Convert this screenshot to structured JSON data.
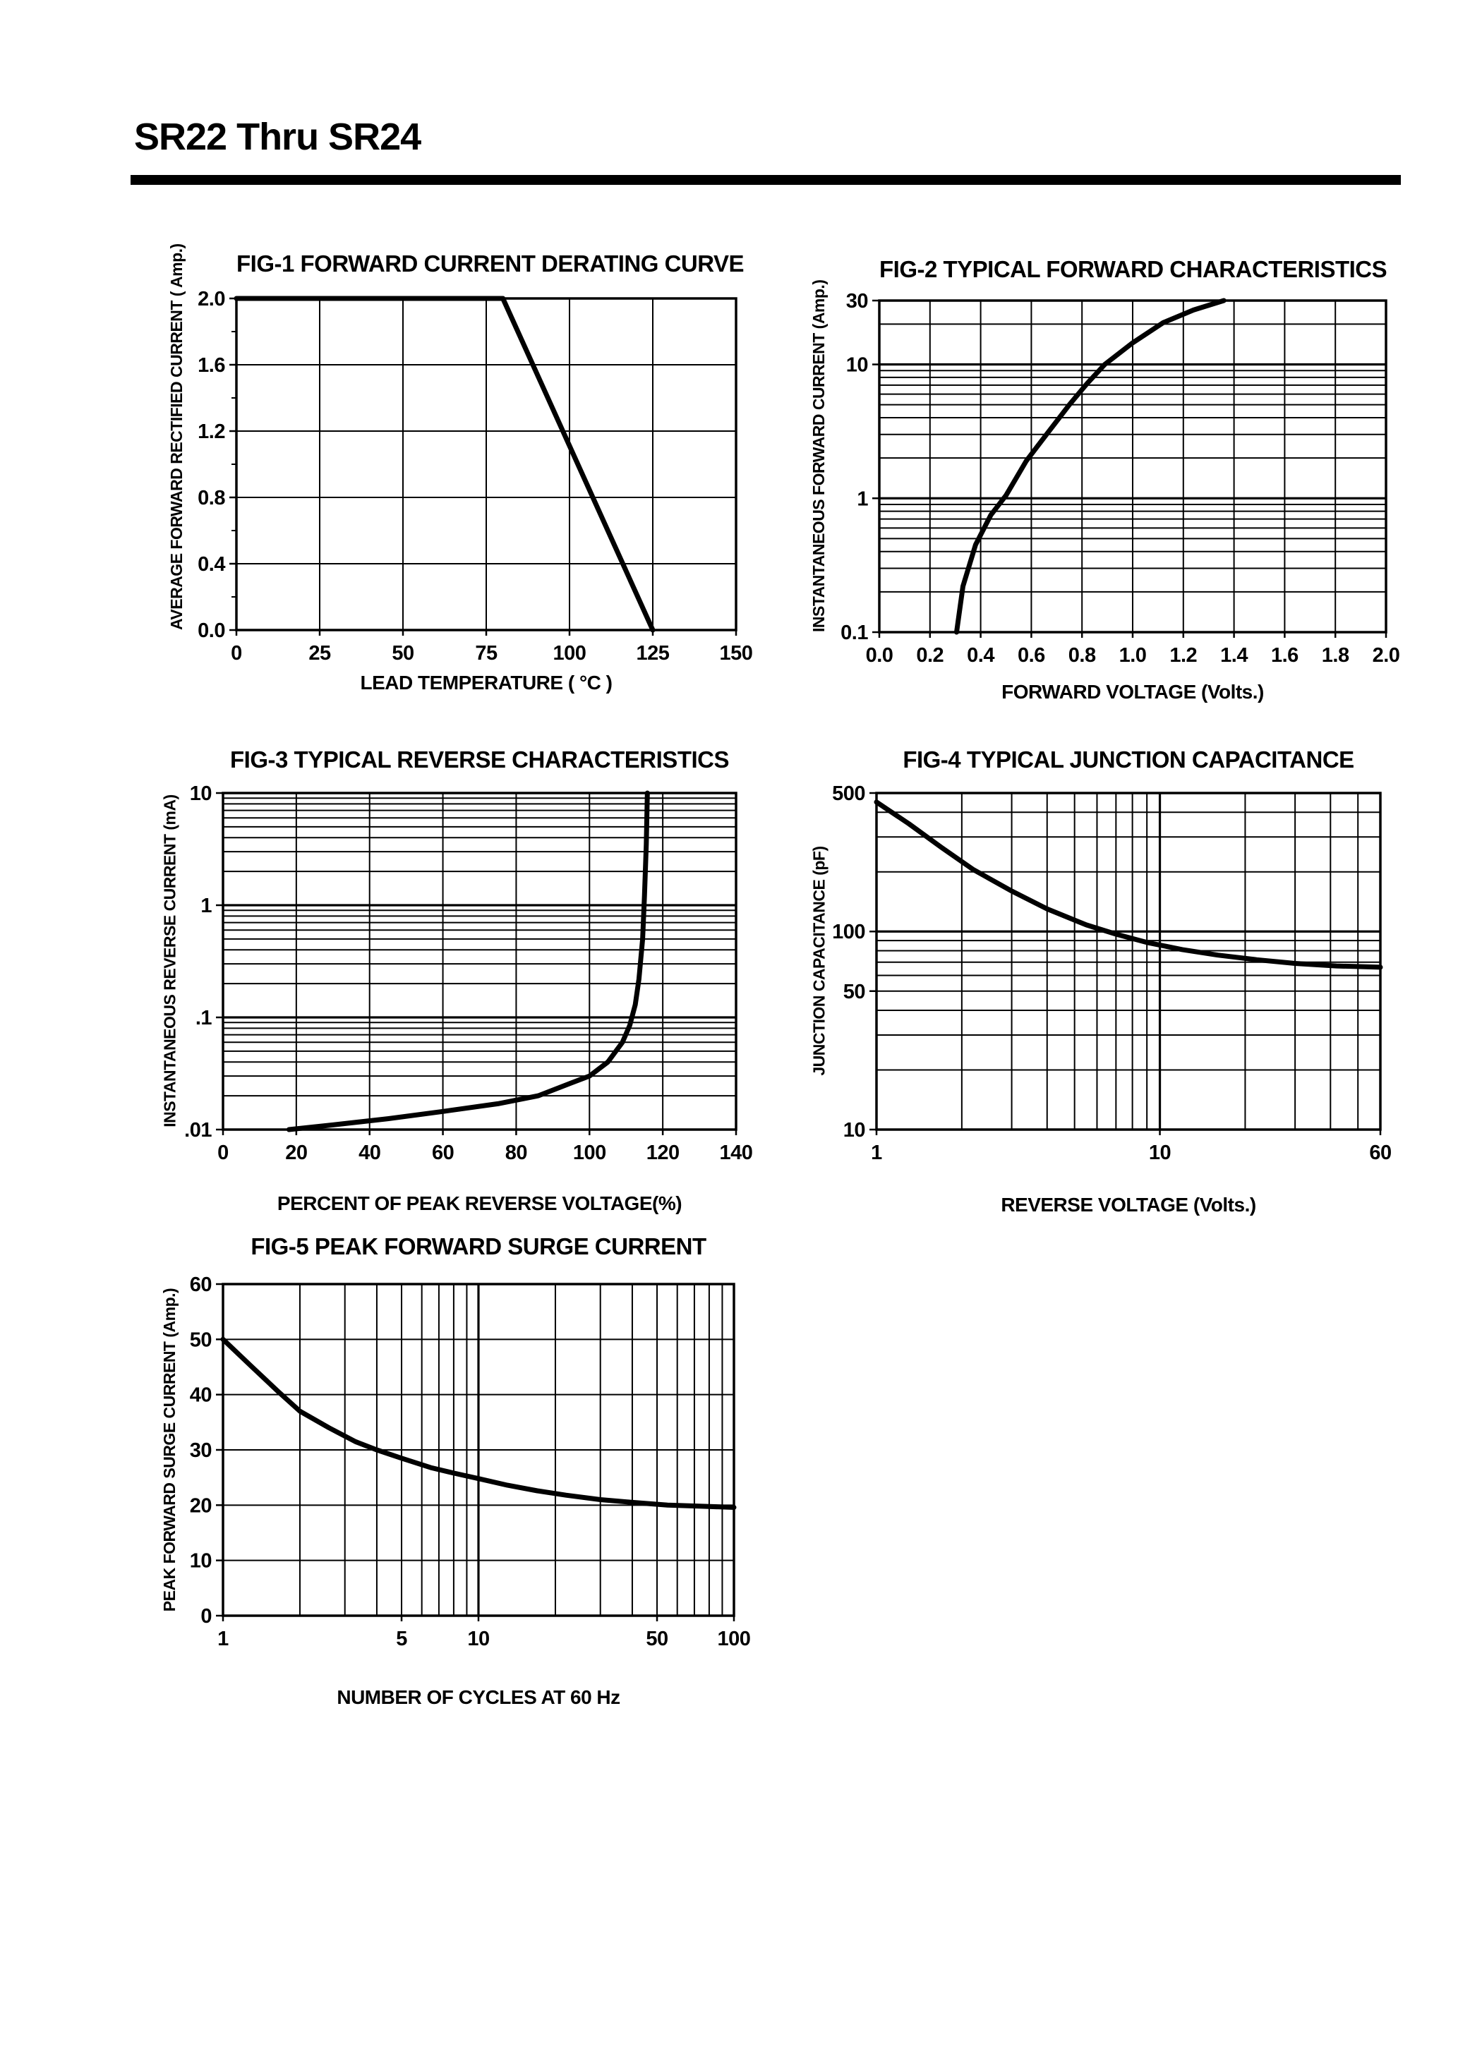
{
  "page": {
    "header_title": "SR22 Thru SR24"
  },
  "chart_data": [
    {
      "id": "fig1",
      "type": "line",
      "title": "FIG-1 FORWARD CURRENT DERATING CURVE",
      "xlabel": "LEAD TEMPERATURE ( °C )",
      "ylabel": "AVERAGE FORWARD RECTIFIED CURRENT ( Amp.)",
      "x_axis": {
        "scale": "linear",
        "min": 0,
        "max": 150,
        "ticks": [
          {
            "v": 0,
            "label": "0"
          },
          {
            "v": 25,
            "label": "25"
          },
          {
            "v": 50,
            "label": "50"
          },
          {
            "v": 75,
            "label": "75"
          },
          {
            "v": 100,
            "label": "100"
          },
          {
            "v": 125,
            "label": "125"
          },
          {
            "v": 150,
            "label": "150"
          }
        ],
        "grid": [
          25,
          50,
          75,
          100,
          125
        ],
        "grid_bold": []
      },
      "y_axis": {
        "scale": "linear",
        "min": 0,
        "max": 2,
        "ticks": [
          {
            "v": 0,
            "label": "0.0"
          },
          {
            "v": 0.4,
            "label": "0.4"
          },
          {
            "v": 0.8,
            "label": "0.8"
          },
          {
            "v": 1.2,
            "label": "1.2"
          },
          {
            "v": 1.6,
            "label": "1.6"
          },
          {
            "v": 2,
            "label": "2.0"
          }
        ],
        "grid": [
          0.4,
          0.8,
          1.2,
          1.6
        ],
        "grid_bold": [],
        "outer_minor": [
          0.2,
          0.6,
          1.0,
          1.4,
          1.8
        ]
      },
      "series": [
        {
          "name": "derating-curve",
          "points": [
            [
              0,
              2
            ],
            [
              80,
              2
            ],
            [
              125,
              0
            ]
          ]
        }
      ]
    },
    {
      "id": "fig2",
      "type": "line",
      "title": "FIG-2 TYPICAL FORWARD CHARACTERISTICS",
      "xlabel": "FORWARD VOLTAGE (Volts.)",
      "ylabel": "INSTANTANEOUS FORWARD CURRENT (Amp.)",
      "x_axis": {
        "scale": "linear",
        "min": 0,
        "max": 2,
        "ticks": [
          {
            "v": 0,
            "label": "0.0"
          },
          {
            "v": 0.2,
            "label": "0.2"
          },
          {
            "v": 0.4,
            "label": "0.4"
          },
          {
            "v": 0.6,
            "label": "0.6"
          },
          {
            "v": 0.8,
            "label": "0.8"
          },
          {
            "v": 1.0,
            "label": "1.0"
          },
          {
            "v": 1.2,
            "label": "1.2"
          },
          {
            "v": 1.4,
            "label": "1.4"
          },
          {
            "v": 1.6,
            "label": "1.6"
          },
          {
            "v": 1.8,
            "label": "1.8"
          },
          {
            "v": 2.0,
            "label": "2.0"
          }
        ],
        "grid": [
          0.2,
          0.4,
          0.6,
          0.8,
          1.0,
          1.2,
          1.4,
          1.6,
          1.8
        ],
        "grid_bold": []
      },
      "y_axis": {
        "scale": "log",
        "min": 0.1,
        "max": 30,
        "ticks": [
          {
            "v": 30,
            "label": "30"
          },
          {
            "v": 10,
            "label": "10"
          },
          {
            "v": 1,
            "label": "1"
          },
          {
            "v": 0.1,
            "label": "0.1"
          }
        ],
        "grid": [
          0.2,
          0.3,
          0.4,
          0.5,
          0.6,
          0.7,
          0.8,
          0.9,
          2,
          3,
          4,
          5,
          6,
          7,
          8,
          9,
          20
        ],
        "grid_bold": [
          1,
          10
        ]
      },
      "series": [
        {
          "name": "forward-characteristic",
          "points": [
            [
              0.305,
              0.1
            ],
            [
              0.33,
              0.22
            ],
            [
              0.38,
              0.45
            ],
            [
              0.44,
              0.75
            ],
            [
              0.5,
              1.05
            ],
            [
              0.58,
              1.9
            ],
            [
              0.66,
              3.0
            ],
            [
              0.75,
              5.0
            ],
            [
              0.82,
              7.2
            ],
            [
              0.89,
              10
            ],
            [
              1.0,
              14.5
            ],
            [
              1.12,
              20.5
            ],
            [
              1.24,
              25.5
            ],
            [
              1.36,
              30
            ]
          ]
        }
      ]
    },
    {
      "id": "fig3",
      "type": "line",
      "title": "FIG-3 TYPICAL REVERSE CHARACTERISTICS",
      "xlabel": "PERCENT OF PEAK REVERSE VOLTAGE(%)",
      "ylabel": "INSTANTANEOUS REVERSE CURRENT (mA)",
      "x_axis": {
        "scale": "linear",
        "min": 0,
        "max": 140,
        "ticks": [
          {
            "v": 0,
            "label": "0"
          },
          {
            "v": 20,
            "label": "20"
          },
          {
            "v": 40,
            "label": "40"
          },
          {
            "v": 60,
            "label": "60"
          },
          {
            "v": 80,
            "label": "80"
          },
          {
            "v": 100,
            "label": "100"
          },
          {
            "v": 120,
            "label": "120"
          },
          {
            "v": 140,
            "label": "140"
          }
        ],
        "grid": [
          20,
          40,
          60,
          80,
          100,
          120
        ],
        "grid_bold": []
      },
      "y_axis": {
        "scale": "log",
        "min": 0.01,
        "max": 10,
        "ticks": [
          {
            "v": 10,
            "label": "10"
          },
          {
            "v": 1,
            "label": "1"
          },
          {
            "v": 0.1,
            "label": ".1"
          },
          {
            "v": 0.01,
            "label": ".01"
          }
        ],
        "grid": [
          0.02,
          0.03,
          0.04,
          0.05,
          0.06,
          0.07,
          0.08,
          0.09,
          0.2,
          0.3,
          0.4,
          0.5,
          0.6,
          0.7,
          0.8,
          0.9,
          2,
          3,
          4,
          5,
          6,
          7,
          8,
          9
        ],
        "grid_bold": [
          0.1,
          1
        ]
      },
      "series": [
        {
          "name": "reverse-characteristic",
          "points": [
            [
              18,
              0.01
            ],
            [
              30,
              0.011
            ],
            [
              45,
              0.0125
            ],
            [
              60,
              0.0145
            ],
            [
              75,
              0.017
            ],
            [
              86,
              0.02
            ],
            [
              95,
              0.026
            ],
            [
              100,
              0.03
            ],
            [
              105,
              0.04
            ],
            [
              109,
              0.06
            ],
            [
              111,
              0.085
            ],
            [
              112.5,
              0.13
            ],
            [
              113.5,
              0.22
            ],
            [
              114.5,
              0.5
            ],
            [
              115,
              1.2
            ],
            [
              115.5,
              3.5
            ],
            [
              115.8,
              10
            ]
          ]
        }
      ]
    },
    {
      "id": "fig4",
      "type": "line",
      "title": "FIG-4 TYPICAL JUNCTION CAPACITANCE",
      "xlabel": "REVERSE VOLTAGE (Volts.)",
      "ylabel": "JUNCTION CAPACITANCE (pF)",
      "x_axis": {
        "scale": "log",
        "min": 1,
        "max": 60,
        "ticks": [
          {
            "v": 1,
            "label": "1"
          },
          {
            "v": 10,
            "label": "10"
          },
          {
            "v": 60,
            "label": "60"
          }
        ],
        "grid": [
          2,
          3,
          4,
          5,
          6,
          7,
          8,
          9,
          20,
          30,
          40,
          50
        ],
        "grid_bold": [
          10
        ]
      },
      "y_axis": {
        "scale": "log",
        "min": 10,
        "max": 500,
        "ticks": [
          {
            "v": 500,
            "label": "500"
          },
          {
            "v": 100,
            "label": "100"
          },
          {
            "v": 50,
            "label": "50"
          },
          {
            "v": 10,
            "label": "10"
          }
        ],
        "grid": [
          20,
          30,
          40,
          50,
          60,
          70,
          80,
          90,
          200,
          300,
          400
        ],
        "grid_bold": [
          100
        ]
      },
      "series": [
        {
          "name": "junction-capacitance",
          "points": [
            [
              1,
              450
            ],
            [
              1.3,
              350
            ],
            [
              1.7,
              265
            ],
            [
              2.2,
              205
            ],
            [
              3,
              160
            ],
            [
              4,
              130
            ],
            [
              5.5,
              108
            ],
            [
              7,
              97
            ],
            [
              9,
              88
            ],
            [
              12,
              81
            ],
            [
              16,
              76
            ],
            [
              22,
              72
            ],
            [
              30,
              69
            ],
            [
              42,
              67
            ],
            [
              60,
              66
            ]
          ]
        }
      ]
    },
    {
      "id": "fig5",
      "type": "line",
      "title": "FIG-5 PEAK FORWARD SURGE CURRENT",
      "xlabel": "NUMBER OF CYCLES AT 60 Hz",
      "ylabel": "PEAK FORWARD SURGE CURRENT (Amp.)",
      "x_axis": {
        "scale": "log",
        "min": 1,
        "max": 100,
        "ticks": [
          {
            "v": 1,
            "label": "1"
          },
          {
            "v": 5,
            "label": "5"
          },
          {
            "v": 10,
            "label": "10"
          },
          {
            "v": 50,
            "label": "50"
          },
          {
            "v": 100,
            "label": "100"
          }
        ],
        "grid": [
          2,
          3,
          4,
          5,
          6,
          7,
          8,
          9,
          20,
          30,
          40,
          50,
          60,
          70,
          80,
          90
        ],
        "grid_bold": [
          10
        ]
      },
      "y_axis": {
        "scale": "linear",
        "min": 0,
        "max": 60,
        "ticks": [
          {
            "v": 0,
            "label": "0"
          },
          {
            "v": 10,
            "label": "10"
          },
          {
            "v": 20,
            "label": "20"
          },
          {
            "v": 30,
            "label": "30"
          },
          {
            "v": 40,
            "label": "40"
          },
          {
            "v": 50,
            "label": "50"
          },
          {
            "v": 60,
            "label": "60"
          }
        ],
        "grid": [
          10,
          20,
          30,
          40,
          50
        ],
        "grid_bold": []
      },
      "series": [
        {
          "name": "surge-current",
          "points": [
            [
              1,
              50
            ],
            [
              1.3,
              45
            ],
            [
              1.65,
              40.5
            ],
            [
              2,
              37
            ],
            [
              2.6,
              34
            ],
            [
              3.3,
              31.5
            ],
            [
              4,
              30
            ],
            [
              5,
              28.5
            ],
            [
              6.5,
              26.8
            ],
            [
              8,
              25.8
            ],
            [
              10,
              24.8
            ],
            [
              13,
              23.6
            ],
            [
              17,
              22.6
            ],
            [
              22,
              21.8
            ],
            [
              30,
              21
            ],
            [
              40,
              20.5
            ],
            [
              55,
              20
            ],
            [
              75,
              19.8
            ],
            [
              100,
              19.6
            ]
          ]
        }
      ]
    }
  ]
}
